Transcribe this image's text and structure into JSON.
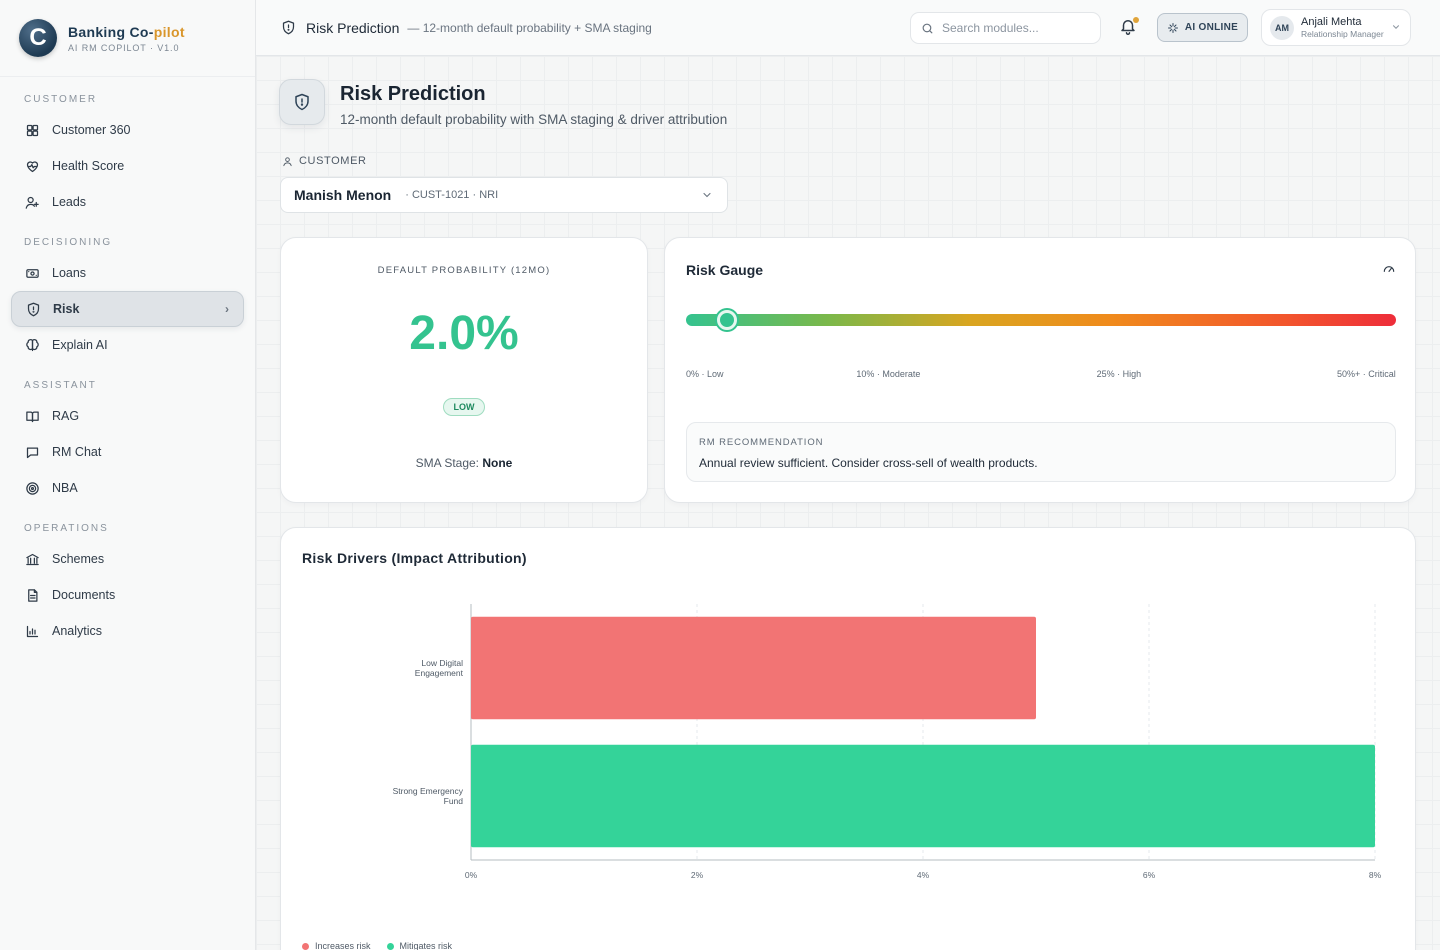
{
  "brand": {
    "logo_letter": "C",
    "title_main": "Banking Co-",
    "title_accent": "pilot",
    "subtitle": "AI RM COPILOT · V1.0"
  },
  "sidebar": {
    "sections": [
      {
        "title": "CUSTOMER",
        "items": [
          {
            "label": "Customer 360",
            "icon": "grid-icon",
            "active": false
          },
          {
            "label": "Health Score",
            "icon": "heart-pulse-icon",
            "active": false
          },
          {
            "label": "Leads",
            "icon": "user-plus-icon",
            "active": false
          }
        ]
      },
      {
        "title": "DECISIONING",
        "items": [
          {
            "label": "Loans",
            "icon": "banknote-icon",
            "active": false
          },
          {
            "label": "Risk",
            "icon": "shield-icon",
            "active": true
          },
          {
            "label": "Explain AI",
            "icon": "brain-icon",
            "active": false
          }
        ]
      },
      {
        "title": "ASSISTANT",
        "items": [
          {
            "label": "RAG",
            "icon": "book-icon",
            "active": false
          },
          {
            "label": "RM Chat",
            "icon": "chat-icon",
            "active": false
          },
          {
            "label": "NBA",
            "icon": "target-icon",
            "active": false
          }
        ]
      },
      {
        "title": "OPERATIONS",
        "items": [
          {
            "label": "Schemes",
            "icon": "bank-icon",
            "active": false
          },
          {
            "label": "Documents",
            "icon": "document-icon",
            "active": false
          },
          {
            "label": "Analytics",
            "icon": "bar-chart-icon",
            "active": false
          }
        ]
      }
    ]
  },
  "topbar": {
    "title": "Risk Prediction",
    "subtitle": "— 12-month default probability + SMA staging",
    "search_placeholder": "Search modules...",
    "ai_status": "AI ONLINE",
    "user": {
      "initials": "AM",
      "name": "Anjali Mehta",
      "role": "Relationship Manager"
    }
  },
  "page": {
    "title": "Risk Prediction",
    "subtitle": "12-month default probability with SMA staging & driver attribution",
    "customer_label": "CUSTOMER",
    "customer": {
      "name": "Manish Menon",
      "meta": "· CUST-1021 · NRI"
    }
  },
  "probability": {
    "label": "DEFAULT PROBABILITY (12MO)",
    "value": "2.0%",
    "value_number": 2.0,
    "badge": "LOW",
    "sma_label": "SMA Stage:",
    "sma_value": "None"
  },
  "gauge": {
    "title": "Risk Gauge",
    "ticks": [
      "0% · Low",
      "10% · Moderate",
      "25% · High",
      "50%+ · Critical"
    ],
    "rec_label": "RM RECOMMENDATION",
    "rec_text": "Annual review sufficient. Consider cross-sell of wealth products."
  },
  "drivers": {
    "title": "Risk Drivers (Impact Attribution)",
    "legend": [
      {
        "label": "Increases risk",
        "color": "#f27474"
      },
      {
        "label": "Mitigates risk",
        "color": "#34d399"
      }
    ]
  },
  "chart_data": {
    "type": "bar",
    "orientation": "horizontal",
    "title": "Risk Drivers (Impact Attribution)",
    "categories": [
      [
        "Low Digital",
        "Engagement"
      ],
      [
        "Strong Emergency",
        "Fund"
      ]
    ],
    "values": [
      5.0,
      8.0
    ],
    "colors": [
      "#f27474",
      "#34d399"
    ],
    "xticks": [
      "0%",
      "2%",
      "4%",
      "6%",
      "8%"
    ],
    "xlim": [
      0,
      8
    ],
    "grid": true
  }
}
